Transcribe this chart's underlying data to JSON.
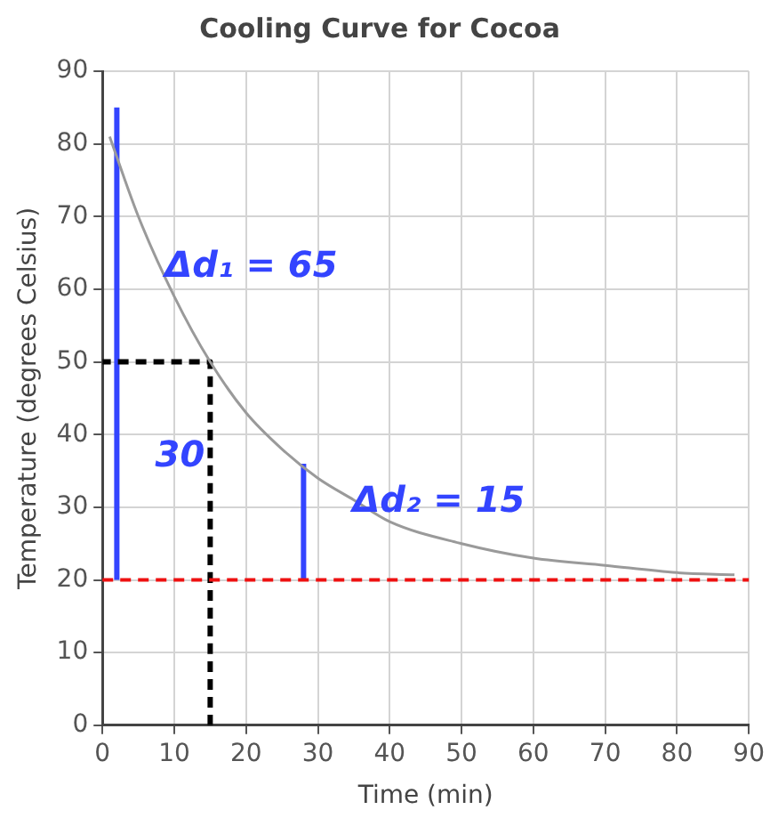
{
  "chart_data": {
    "type": "line",
    "title": "Cooling Curve for Cocoa",
    "xlabel": "Time (min)",
    "ylabel": "Temperature (degrees Celsius)",
    "xlim": [
      0,
      90
    ],
    "ylim": [
      0,
      90
    ],
    "xticks": [
      0,
      10,
      20,
      30,
      40,
      50,
      60,
      70,
      80,
      90
    ],
    "yticks": [
      0,
      10,
      20,
      30,
      40,
      50,
      60,
      70,
      80,
      90
    ],
    "grid": true,
    "marker": "none",
    "series": [
      {
        "color": "#9a9a9a",
        "x": [
          1,
          5,
          10,
          15,
          20,
          25,
          30,
          35,
          40,
          50,
          60,
          70,
          80,
          88
        ],
        "values": [
          81,
          70,
          59,
          50,
          43,
          38,
          34,
          31,
          28,
          25,
          23,
          22,
          21,
          20.7
        ]
      },
      {
        "color": "#000000",
        "line_style": "dashed",
        "x": [
          15,
          15,
          0
        ],
        "values": [
          0,
          50,
          50
        ]
      },
      {
        "color": "#3344ff",
        "x": [
          2,
          2
        ],
        "values": [
          20,
          85
        ]
      },
      {
        "color": "#3344ff",
        "x": [
          28,
          28
        ],
        "values": [
          20,
          36
        ]
      }
    ],
    "ref_lines": [
      {
        "axis": "y",
        "value": 20,
        "color": "#ee1111",
        "line_style": "dashed"
      }
    ],
    "annotations": [
      "Δd₁ = 65",
      "30",
      "Δd₂ = 15"
    ]
  }
}
